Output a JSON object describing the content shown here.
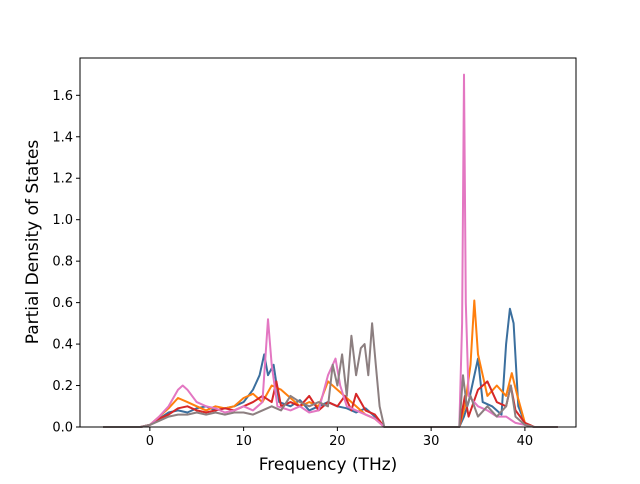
{
  "chart_data": {
    "type": "line",
    "title": "",
    "xlabel": "Frequency (THz)",
    "ylabel": "Partial Density of States",
    "xlim": [
      -7.45,
      45.45
    ],
    "ylim": [
      0.0,
      1.78
    ],
    "xticks": [
      "0",
      "10",
      "20",
      "30",
      "40"
    ],
    "yticks": [
      "0.0",
      "0.2",
      "0.4",
      "0.6",
      "0.8",
      "1.0",
      "1.2",
      "1.4",
      "1.6"
    ],
    "xtick_values": [
      0,
      10,
      20,
      30,
      40
    ],
    "ytick_values": [
      0.0,
      0.2,
      0.4,
      0.6,
      0.8,
      1.0,
      1.2,
      1.4,
      1.6
    ],
    "grid": false,
    "legend": "none",
    "line_color": "#444444",
    "series": [
      {
        "color": "#3b6f9e",
        "points": [
          [
            -5,
            0
          ],
          [
            -1,
            0
          ],
          [
            0,
            0.01
          ],
          [
            1,
            0.04
          ],
          [
            2,
            0.07
          ],
          [
            3,
            0.08
          ],
          [
            4,
            0.07
          ],
          [
            5,
            0.09
          ],
          [
            6,
            0.1
          ],
          [
            7,
            0.08
          ],
          [
            8,
            0.09
          ],
          [
            9,
            0.1
          ],
          [
            10,
            0.12
          ],
          [
            11,
            0.18
          ],
          [
            11.7,
            0.25
          ],
          [
            12.2,
            0.35
          ],
          [
            12.6,
            0.25
          ],
          [
            13.2,
            0.3
          ],
          [
            13.8,
            0.12
          ],
          [
            15,
            0.1
          ],
          [
            16,
            0.13
          ],
          [
            17,
            0.08
          ],
          [
            18,
            0.1
          ],
          [
            19,
            0.12
          ],
          [
            20,
            0.1
          ],
          [
            21,
            0.09
          ],
          [
            22,
            0.07
          ],
          [
            23,
            0.09
          ],
          [
            24,
            0.05
          ],
          [
            25,
            0
          ],
          [
            33,
            0
          ],
          [
            33.5,
            0.05
          ],
          [
            34,
            0.12
          ],
          [
            35,
            0.33
          ],
          [
            35.5,
            0.12
          ],
          [
            36.5,
            0.1
          ],
          [
            37.5,
            0.06
          ],
          [
            38,
            0.4
          ],
          [
            38.4,
            0.57
          ],
          [
            38.8,
            0.5
          ],
          [
            39.3,
            0.1
          ],
          [
            40,
            0.02
          ],
          [
            41,
            0
          ],
          [
            43.5,
            0
          ]
        ]
      },
      {
        "color": "#ff7f0e",
        "points": [
          [
            -5,
            0
          ],
          [
            -1,
            0
          ],
          [
            0,
            0.01
          ],
          [
            1,
            0.05
          ],
          [
            2,
            0.09
          ],
          [
            3,
            0.14
          ],
          [
            4,
            0.12
          ],
          [
            5,
            0.1
          ],
          [
            6,
            0.08
          ],
          [
            7,
            0.1
          ],
          [
            8,
            0.09
          ],
          [
            9,
            0.1
          ],
          [
            10,
            0.14
          ],
          [
            11,
            0.16
          ],
          [
            12,
            0.12
          ],
          [
            13,
            0.2
          ],
          [
            14,
            0.18
          ],
          [
            15,
            0.14
          ],
          [
            16,
            0.1
          ],
          [
            17,
            0.12
          ],
          [
            18,
            0.1
          ],
          [
            19,
            0.22
          ],
          [
            20,
            0.18
          ],
          [
            21,
            0.14
          ],
          [
            22,
            0.1
          ],
          [
            23,
            0.06
          ],
          [
            24,
            0.04
          ],
          [
            25,
            0
          ],
          [
            33,
            0
          ],
          [
            33.6,
            0.1
          ],
          [
            34.2,
            0.3
          ],
          [
            34.6,
            0.61
          ],
          [
            35,
            0.35
          ],
          [
            36,
            0.15
          ],
          [
            37,
            0.2
          ],
          [
            38,
            0.15
          ],
          [
            38.6,
            0.26
          ],
          [
            39.2,
            0.15
          ],
          [
            40,
            0.02
          ],
          [
            41,
            0
          ],
          [
            43.5,
            0
          ]
        ]
      },
      {
        "color": "#d62728",
        "points": [
          [
            -5,
            0
          ],
          [
            -1,
            0
          ],
          [
            0,
            0.01
          ],
          [
            1,
            0.04
          ],
          [
            2,
            0.06
          ],
          [
            3,
            0.09
          ],
          [
            4,
            0.1
          ],
          [
            5,
            0.08
          ],
          [
            6,
            0.07
          ],
          [
            7,
            0.08
          ],
          [
            8,
            0.09
          ],
          [
            9,
            0.08
          ],
          [
            10,
            0.1
          ],
          [
            11,
            0.12
          ],
          [
            12,
            0.15
          ],
          [
            13,
            0.12
          ],
          [
            13.5,
            0.22
          ],
          [
            14,
            0.1
          ],
          [
            15,
            0.12
          ],
          [
            16,
            0.1
          ],
          [
            17,
            0.15
          ],
          [
            18,
            0.08
          ],
          [
            19,
            0.12
          ],
          [
            20,
            0.1
          ],
          [
            20.8,
            0.15
          ],
          [
            21.5,
            0.08
          ],
          [
            22,
            0.16
          ],
          [
            23,
            0.08
          ],
          [
            24,
            0.06
          ],
          [
            25,
            0
          ],
          [
            33,
            0
          ],
          [
            33.6,
            0.15
          ],
          [
            34,
            0.05
          ],
          [
            35,
            0.18
          ],
          [
            36,
            0.22
          ],
          [
            37,
            0.12
          ],
          [
            38,
            0.1
          ],
          [
            38.5,
            0.2
          ],
          [
            39,
            0.08
          ],
          [
            40,
            0.02
          ],
          [
            41,
            0
          ],
          [
            43.5,
            0
          ]
        ]
      },
      {
        "color": "#e377c2",
        "points": [
          [
            -5,
            0
          ],
          [
            -1,
            0
          ],
          [
            0,
            0.01
          ],
          [
            1,
            0.05
          ],
          [
            2,
            0.1
          ],
          [
            3,
            0.18
          ],
          [
            3.5,
            0.2
          ],
          [
            4,
            0.18
          ],
          [
            5,
            0.12
          ],
          [
            6,
            0.1
          ],
          [
            7,
            0.09
          ],
          [
            8,
            0.07
          ],
          [
            9,
            0.08
          ],
          [
            10,
            0.1
          ],
          [
            11,
            0.08
          ],
          [
            12,
            0.12
          ],
          [
            12.6,
            0.52
          ],
          [
            13,
            0.3
          ],
          [
            13.6,
            0.1
          ],
          [
            15,
            0.08
          ],
          [
            16,
            0.1
          ],
          [
            17,
            0.07
          ],
          [
            18,
            0.08
          ],
          [
            19,
            0.25
          ],
          [
            19.8,
            0.33
          ],
          [
            20.3,
            0.2
          ],
          [
            21,
            0.1
          ],
          [
            22,
            0.08
          ],
          [
            23,
            0.06
          ],
          [
            24,
            0.04
          ],
          [
            25,
            0
          ],
          [
            33,
            0
          ],
          [
            33.3,
            0.5
          ],
          [
            33.5,
            1.7
          ],
          [
            33.7,
            0.6
          ],
          [
            34,
            0.15
          ],
          [
            35,
            0.1
          ],
          [
            36,
            0.08
          ],
          [
            37,
            0.05
          ],
          [
            38,
            0.05
          ],
          [
            39,
            0.02
          ],
          [
            40,
            0.01
          ],
          [
            41,
            0
          ],
          [
            43.5,
            0
          ]
        ]
      },
      {
        "color": "#8c7f80",
        "points": [
          [
            -5,
            0
          ],
          [
            -1,
            0
          ],
          [
            0,
            0.01
          ],
          [
            1,
            0.03
          ],
          [
            2,
            0.05
          ],
          [
            3,
            0.06
          ],
          [
            4,
            0.06
          ],
          [
            5,
            0.07
          ],
          [
            6,
            0.06
          ],
          [
            7,
            0.07
          ],
          [
            8,
            0.06
          ],
          [
            9,
            0.07
          ],
          [
            10,
            0.07
          ],
          [
            11,
            0.06
          ],
          [
            12,
            0.08
          ],
          [
            13,
            0.1
          ],
          [
            14,
            0.08
          ],
          [
            15,
            0.15
          ],
          [
            16,
            0.12
          ],
          [
            17,
            0.1
          ],
          [
            18,
            0.12
          ],
          [
            19,
            0.1
          ],
          [
            19.5,
            0.3
          ],
          [
            20,
            0.2
          ],
          [
            20.5,
            0.35
          ],
          [
            21,
            0.15
          ],
          [
            21.5,
            0.44
          ],
          [
            22,
            0.25
          ],
          [
            22.5,
            0.38
          ],
          [
            22.9,
            0.4
          ],
          [
            23.3,
            0.25
          ],
          [
            23.7,
            0.5
          ],
          [
            24.1,
            0.3
          ],
          [
            24.5,
            0.1
          ],
          [
            25,
            0
          ],
          [
            33,
            0
          ],
          [
            33.4,
            0.25
          ],
          [
            33.8,
            0.1
          ],
          [
            34.2,
            0.15
          ],
          [
            35,
            0.05
          ],
          [
            36,
            0.1
          ],
          [
            37,
            0.05
          ],
          [
            38,
            0.1
          ],
          [
            38.5,
            0.2
          ],
          [
            39,
            0.05
          ],
          [
            40,
            0.01
          ],
          [
            41,
            0
          ],
          [
            43.5,
            0
          ]
        ]
      }
    ]
  }
}
